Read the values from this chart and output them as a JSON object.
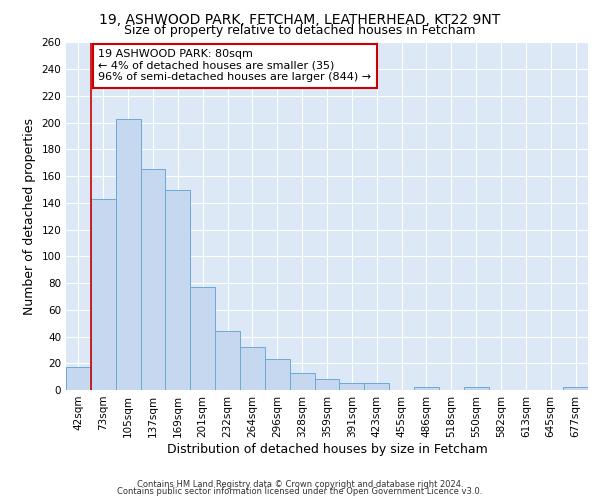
{
  "title1": "19, ASHWOOD PARK, FETCHAM, LEATHERHEAD, KT22 9NT",
  "title2": "Size of property relative to detached houses in Fetcham",
  "xlabel": "Distribution of detached houses by size in Fetcham",
  "ylabel": "Number of detached properties",
  "categories": [
    "42sqm",
    "73sqm",
    "105sqm",
    "137sqm",
    "169sqm",
    "201sqm",
    "232sqm",
    "264sqm",
    "296sqm",
    "328sqm",
    "359sqm",
    "391sqm",
    "423sqm",
    "455sqm",
    "486sqm",
    "518sqm",
    "550sqm",
    "582sqm",
    "613sqm",
    "645sqm",
    "677sqm"
  ],
  "values": [
    17,
    143,
    203,
    165,
    150,
    77,
    44,
    32,
    23,
    13,
    8,
    5,
    5,
    0,
    2,
    0,
    2,
    0,
    0,
    0,
    2
  ],
  "bar_color": "#c5d8f0",
  "bar_edge_color": "#6aaad4",
  "vline_color": "#cc0000",
  "vline_x_index": 1,
  "annotation_text": "19 ASHWOOD PARK: 80sqm\n← 4% of detached houses are smaller (35)\n96% of semi-detached houses are larger (844) →",
  "annotation_box_facecolor": "#ffffff",
  "annotation_box_edgecolor": "#cc0000",
  "ylim": [
    0,
    260
  ],
  "yticks": [
    0,
    20,
    40,
    60,
    80,
    100,
    120,
    140,
    160,
    180,
    200,
    220,
    240,
    260
  ],
  "footer1": "Contains HM Land Registry data © Crown copyright and database right 2024.",
  "footer2": "Contains public sector information licensed under the Open Government Licence v3.0.",
  "fig_facecolor": "#ffffff",
  "ax_facecolor": "#dce8f5",
  "grid_color": "#ffffff",
  "title1_fontsize": 10,
  "title2_fontsize": 9,
  "axis_label_fontsize": 9,
  "tick_fontsize": 7.5,
  "footer_fontsize": 6,
  "annot_fontsize": 8
}
